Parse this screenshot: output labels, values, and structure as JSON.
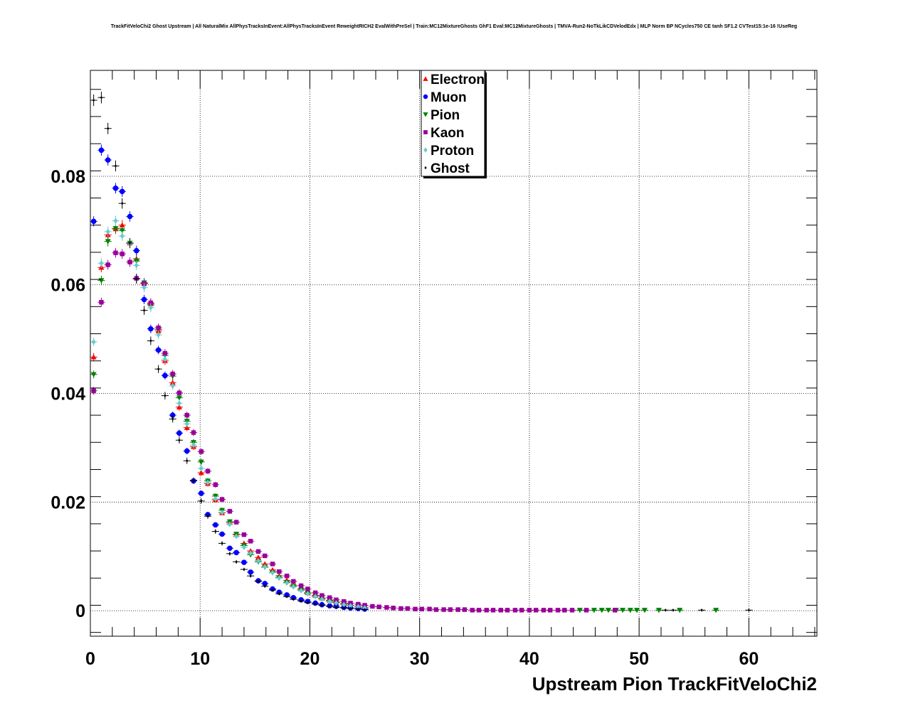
{
  "chart_data": {
    "type": "scatter",
    "title": "TrackFitVeloChi2 Ghost Upstream | All NaturalMix AllPhysTracksInEvent:AllPhysTracksInEvent ReweightRICH2 EvalWithPreSel | Train:MC12MixtureGhosts GhF1 Eval:MC12MixtureGhosts | TMVA-Run2-NoTkLikCDVelodEdx | MLP Norm BP NCycles750 CE tanh SF1.2 CVTest15:1e-16 !UseReg",
    "xlabel": "Upstream Pion TrackFitVeloChi2",
    "ylabel": "",
    "xlim": [
      0,
      66.2
    ],
    "ylim": [
      -0.0047,
      0.0995
    ],
    "x_ticks": [
      0,
      10,
      20,
      30,
      40,
      50,
      60
    ],
    "y_ticks": [
      0,
      0.02,
      0.04,
      0.06,
      0.08
    ],
    "x_tick_labels": [
      "0",
      "10",
      "20",
      "30",
      "40",
      "50",
      "60"
    ],
    "y_tick_labels": [
      "0",
      "0.02",
      "0.04",
      "0.06",
      "0.08"
    ],
    "grid": true,
    "legend_position": "top-center",
    "series": [
      {
        "name": "Electron",
        "color": "#ff0000",
        "marker": "triangle-up",
        "x": [
          0.3,
          1.0,
          1.6,
          2.3,
          2.9,
          3.6,
          4.2,
          4.9,
          5.5,
          6.2,
          6.8,
          7.5,
          8.1,
          8.8,
          9.4,
          10.1,
          10.7,
          11.4,
          12.0,
          12.7,
          13.3,
          14.0,
          14.6,
          15.3,
          15.9,
          16.6,
          17.2,
          17.9,
          18.5,
          19.2,
          19.8,
          20.5,
          21.1,
          21.8,
          22.4,
          23.1,
          23.7,
          24.4,
          25.0
        ],
        "y": [
          0.0467,
          0.0632,
          0.0692,
          0.0703,
          0.071,
          0.0677,
          0.0648,
          0.0603,
          0.0565,
          0.0515,
          0.046,
          0.042,
          0.0375,
          0.0337,
          0.0302,
          0.0254,
          0.0234,
          0.0204,
          0.018,
          0.0162,
          0.014,
          0.0124,
          0.011,
          0.0098,
          0.0086,
          0.0075,
          0.0064,
          0.0056,
          0.0047,
          0.004,
          0.0033,
          0.0028,
          0.0023,
          0.0019,
          0.0016,
          0.0013,
          0.001,
          0.0008,
          0.0006
        ]
      },
      {
        "name": "Muon",
        "color": "#0000ff",
        "marker": "circle",
        "x": [
          0.3,
          1.0,
          1.6,
          2.3,
          2.9,
          3.6,
          4.2,
          4.9,
          5.5,
          6.2,
          6.8,
          7.5,
          8.1,
          8.8,
          9.4,
          10.1,
          10.7,
          11.4,
          12.0,
          12.7,
          13.3,
          14.0,
          14.6,
          15.3,
          15.9,
          16.6,
          17.2,
          17.9,
          18.5,
          19.2,
          19.8,
          20.5,
          21.1,
          21.8,
          22.4,
          23.1,
          23.7,
          24.4,
          25.0
        ],
        "y": [
          0.0717,
          0.0848,
          0.083,
          0.0778,
          0.0772,
          0.0726,
          0.0663,
          0.0573,
          0.0519,
          0.048,
          0.0433,
          0.036,
          0.0327,
          0.0294,
          0.0239,
          0.0216,
          0.0177,
          0.0158,
          0.0141,
          0.0115,
          0.0107,
          0.0089,
          0.0071,
          0.0055,
          0.005,
          0.004,
          0.0034,
          0.0029,
          0.0024,
          0.002,
          0.0017,
          0.0014,
          0.0011,
          0.0009,
          0.0008,
          0.0006,
          0.0005,
          0.0004,
          0.0003
        ]
      },
      {
        "name": "Pion",
        "color": "#008000",
        "marker": "triangle-down",
        "x": [
          0.3,
          1.0,
          1.6,
          2.3,
          2.9,
          3.6,
          4.2,
          4.9,
          5.5,
          6.2,
          6.8,
          7.5,
          8.1,
          8.8,
          9.4,
          10.1,
          10.7,
          11.4,
          12.0,
          12.7,
          13.3,
          14.0,
          14.6,
          15.3,
          15.9,
          16.6,
          17.2,
          17.9,
          18.5,
          19.2,
          19.8,
          20.5,
          21.1,
          21.8,
          22.4,
          23.1,
          23.7,
          24.4,
          25.0,
          44.6,
          45.9,
          46.6,
          47.2,
          47.9,
          48.5,
          49.2,
          49.8,
          50.5,
          51.8,
          53.7,
          57.0
        ],
        "y": [
          0.0435,
          0.0608,
          0.068,
          0.0704,
          0.07,
          0.0677,
          0.0644,
          0.0604,
          0.0563,
          0.0518,
          0.047,
          0.0432,
          0.0392,
          0.0349,
          0.031,
          0.0274,
          0.0239,
          0.0211,
          0.0185,
          0.0164,
          0.0141,
          0.012,
          0.0103,
          0.009,
          0.008,
          0.007,
          0.0061,
          0.0052,
          0.0045,
          0.0038,
          0.0032,
          0.0027,
          0.0022,
          0.0018,
          0.0015,
          0.0012,
          0.0009,
          0.0007,
          0.0006,
          0.0001,
          0.0001,
          0.0001,
          0.0001,
          0.0001,
          0.0001,
          0.0001,
          0.0001,
          0.0001,
          0.0001,
          0.0001,
          0.0001
        ]
      },
      {
        "name": "Kaon",
        "color": "#990099",
        "marker": "square",
        "x": [
          0.3,
          1.0,
          1.6,
          2.3,
          2.9,
          3.6,
          4.2,
          4.9,
          5.5,
          6.2,
          6.8,
          7.5,
          8.1,
          8.8,
          9.4,
          10.1,
          10.7,
          11.4,
          12.0,
          12.7,
          13.3,
          14.0,
          14.6,
          15.3,
          15.9,
          16.6,
          17.2,
          17.9,
          18.5,
          19.2,
          19.8,
          20.5,
          21.1,
          21.8,
          22.4,
          23.1,
          23.7,
          24.4,
          25.0,
          25.7,
          26.3,
          27.0,
          27.6,
          28.3,
          28.9,
          29.6,
          30.2,
          30.9,
          31.5,
          32.2,
          32.8,
          33.5,
          34.1,
          34.8,
          35.4,
          36.1,
          36.7,
          37.4,
          38.0,
          38.7,
          39.3,
          40.0,
          40.6,
          41.3,
          41.9,
          42.6,
          43.2,
          43.9,
          45.2,
          47.8
        ],
        "y": [
          0.0405,
          0.0568,
          0.0637,
          0.0659,
          0.0657,
          0.0642,
          0.0612,
          0.0602,
          0.0567,
          0.0521,
          0.0474,
          0.0436,
          0.0401,
          0.036,
          0.0328,
          0.0293,
          0.0257,
          0.0232,
          0.0205,
          0.0183,
          0.0163,
          0.014,
          0.0128,
          0.0109,
          0.0101,
          0.0086,
          0.0072,
          0.0064,
          0.0054,
          0.0046,
          0.004,
          0.0033,
          0.0028,
          0.0024,
          0.002,
          0.0017,
          0.0014,
          0.0012,
          0.001,
          0.0008,
          0.0007,
          0.0006,
          0.0005,
          0.0004,
          0.0004,
          0.0003,
          0.0003,
          0.0003,
          0.0002,
          0.0002,
          0.0002,
          0.0002,
          0.0002,
          0.0001,
          0.0001,
          0.0001,
          0.0001,
          0.0001,
          0.0001,
          0.0001,
          0.0001,
          0.0001,
          0.0001,
          0.0001,
          0.0001,
          0.0001,
          0.0001,
          0.0001,
          0.0001,
          0.0001
        ]
      },
      {
        "name": "Proton",
        "color": "#66cccc",
        "marker": "diamond",
        "x": [
          0.3,
          1.0,
          1.6,
          2.3,
          2.9,
          3.6,
          4.2,
          4.9,
          5.5,
          6.2,
          6.8,
          7.5,
          8.1,
          8.8,
          9.4,
          10.1,
          10.7,
          11.4,
          12.0,
          12.7,
          13.3,
          14.0,
          14.6,
          15.3,
          15.9,
          16.6,
          17.2,
          17.9,
          18.5,
          19.2,
          19.8,
          20.5,
          21.1,
          21.8,
          22.4,
          23.1,
          23.7,
          24.4,
          25.0
        ],
        "y": [
          0.0495,
          0.064,
          0.0698,
          0.0718,
          0.069,
          0.0676,
          0.0636,
          0.0595,
          0.0558,
          0.0508,
          0.0463,
          0.0414,
          0.0382,
          0.0344,
          0.0305,
          0.0262,
          0.0236,
          0.0206,
          0.0181,
          0.0159,
          0.0137,
          0.0117,
          0.0106,
          0.0092,
          0.0081,
          0.007,
          0.006,
          0.0051,
          0.0044,
          0.0037,
          0.0031,
          0.0026,
          0.0021,
          0.0017,
          0.0014,
          0.0011,
          0.0009,
          0.0007,
          0.0005
        ]
      },
      {
        "name": "Ghost",
        "color": "#000000",
        "marker": "small-diamond",
        "x": [
          0.3,
          1.0,
          1.6,
          2.3,
          2.9,
          3.6,
          4.2,
          4.9,
          5.5,
          6.2,
          6.8,
          7.5,
          8.1,
          8.8,
          9.4,
          10.1,
          10.7,
          11.4,
          12.0,
          12.7,
          13.3,
          14.0,
          14.6,
          15.3,
          15.9,
          16.6,
          17.2,
          17.9,
          18.5,
          19.2,
          19.8,
          20.5,
          21.1,
          21.8,
          22.4,
          23.1,
          23.7,
          24.4,
          25.0,
          52.4,
          53.1,
          55.7,
          60.0
        ],
        "y": [
          0.094,
          0.0945,
          0.0888,
          0.0819,
          0.075,
          0.0677,
          0.0611,
          0.0553,
          0.0497,
          0.0445,
          0.0396,
          0.0353,
          0.0314,
          0.0276,
          0.024,
          0.0202,
          0.0174,
          0.0146,
          0.0124,
          0.0105,
          0.009,
          0.0076,
          0.0064,
          0.0054,
          0.0045,
          0.0038,
          0.0031,
          0.0026,
          0.0021,
          0.0018,
          0.0015,
          0.0012,
          0.001,
          0.0008,
          0.0006,
          0.0005,
          0.0004,
          0.0003,
          0.0002,
          0.0001,
          0.0001,
          0.0001,
          0.0001
        ]
      }
    ]
  }
}
